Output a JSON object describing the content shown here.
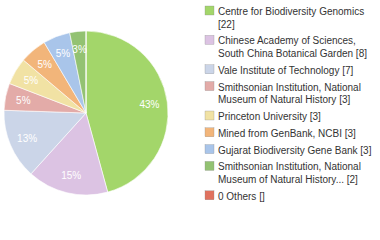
{
  "chart_data": {
    "type": "pie",
    "categories": [
      "Centre for Biodiversity Genomics [22]",
      "Chinese Academy of Sciences, South China Botanical Garden [8]",
      "Vale Institute of Technology [7]",
      "Smithsonian Institution, National Museum of Natural History [3]",
      "Princeton University [3]",
      "Mined from GenBank, NCBI [3]",
      "Gujarat Biodiversity Gene Bank [3]",
      "Smithsonian Institution, National Museum of Natural History... [2]",
      "0 Others []"
    ],
    "values": [
      43,
      15,
      13,
      5,
      5,
      5,
      5,
      3,
      0
    ],
    "value_labels": [
      "43%",
      "15%",
      "13%",
      "5%",
      "5%",
      "5%",
      "5%",
      "3%",
      null
    ],
    "colors": [
      "#a3d66a",
      "#dcc3e3",
      "#cbd5e8",
      "#e3aba8",
      "#f1e2a4",
      "#f2b57a",
      "#a9c5ea",
      "#93c272",
      "#e0725f"
    ],
    "data_labels": true,
    "legend": "right"
  }
}
